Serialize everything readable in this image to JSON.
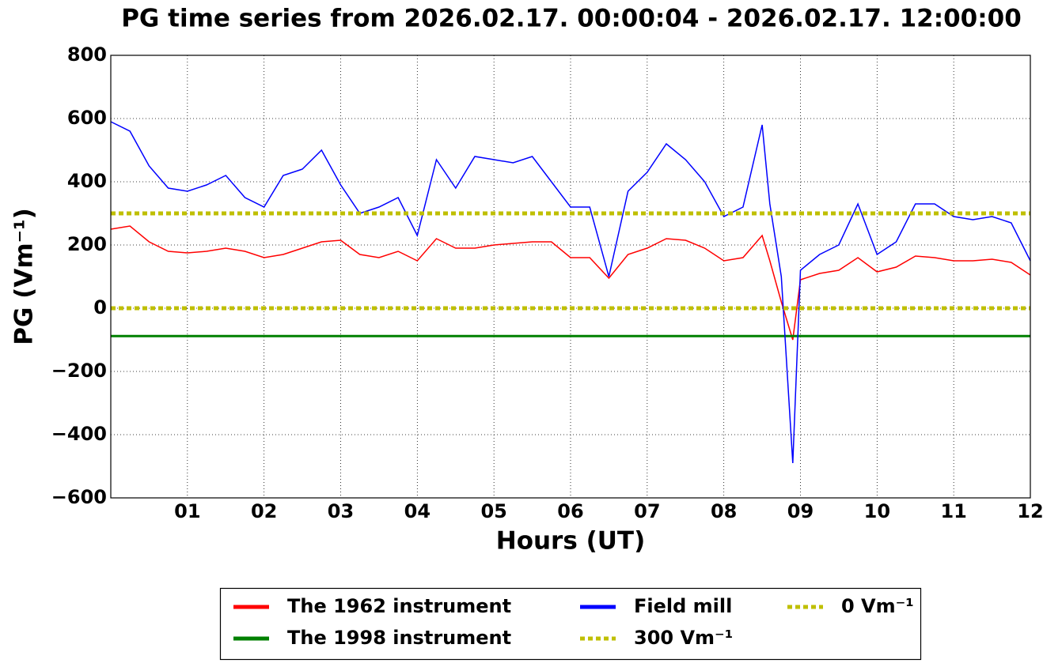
{
  "chart_data": {
    "type": "line",
    "title": "PG time series from 2026.02.17. 00:00:04 - 2026.02.17. 12:00:00",
    "x_label": "Hours (UT)",
    "y_label": "PG (Vm⁻¹)",
    "x": [
      0,
      0.25,
      0.5,
      0.75,
      1,
      1.25,
      1.5,
      1.75,
      2,
      2.25,
      2.5,
      2.75,
      3,
      3.25,
      3.5,
      3.75,
      4,
      4.25,
      4.5,
      4.75,
      5,
      5.25,
      5.5,
      5.75,
      6,
      6.25,
      6.5,
      6.75,
      7,
      7.25,
      7.5,
      7.75,
      8,
      8.25,
      8.5,
      8.6,
      8.75,
      8.9,
      9,
      9.25,
      9.5,
      9.75,
      10,
      10.25,
      10.5,
      10.75,
      11,
      11.25,
      11.5,
      11.75,
      12
    ],
    "series": [
      {
        "name": "The 1962 instrument",
        "color": "#ff0000",
        "values": [
          250,
          260,
          210,
          180,
          175,
          180,
          190,
          180,
          160,
          170,
          190,
          210,
          215,
          170,
          160,
          180,
          150,
          220,
          190,
          190,
          200,
          205,
          210,
          210,
          160,
          160,
          95,
          170,
          190,
          220,
          215,
          190,
          150,
          160,
          230,
          150,
          20,
          -100,
          90,
          110,
          120,
          160,
          115,
          130,
          165,
          160,
          150,
          150,
          155,
          145,
          105
        ]
      },
      {
        "name": "The 1998 instrument",
        "color": "#008000",
        "values": [
          -88,
          -88,
          -88,
          -88,
          -88,
          -88,
          -88,
          -88,
          -88,
          -88,
          -88,
          -88,
          -88,
          -88,
          -88,
          -88,
          -88,
          -88,
          -88,
          -88,
          -88,
          -88,
          -88,
          -88,
          -88,
          -88,
          -88,
          -88,
          -88,
          -88,
          -88,
          -88,
          -88,
          -88,
          -88,
          -88,
          -88,
          -88,
          -88,
          -88,
          -88,
          -88,
          -88,
          -88,
          -88,
          -88,
          -88,
          -88,
          -88,
          -88,
          -88
        ]
      },
      {
        "name": "Field mill",
        "color": "#0000ff",
        "values": [
          590,
          560,
          450,
          380,
          370,
          390,
          420,
          350,
          320,
          420,
          440,
          500,
          390,
          300,
          320,
          350,
          230,
          470,
          380,
          480,
          470,
          460,
          480,
          400,
          320,
          320,
          100,
          370,
          430,
          520,
          470,
          400,
          290,
          320,
          580,
          330,
          100,
          -490,
          120,
          170,
          200,
          330,
          170,
          210,
          330,
          330,
          290,
          280,
          290,
          270,
          150
        ]
      }
    ],
    "hlines": [
      {
        "name": "300 Vm⁻¹",
        "value": 300,
        "color": "#bfbf00"
      },
      {
        "name": "0 Vm⁻¹",
        "value": 0,
        "color": "#bfbf00"
      }
    ],
    "xlim": [
      0,
      12
    ],
    "xticks": [
      {
        "value": 1,
        "label": "01"
      },
      {
        "value": 2,
        "label": "02"
      },
      {
        "value": 3,
        "label": "03"
      },
      {
        "value": 4,
        "label": "04"
      },
      {
        "value": 5,
        "label": "05"
      },
      {
        "value": 6,
        "label": "06"
      },
      {
        "value": 7,
        "label": "07"
      },
      {
        "value": 8,
        "label": "08"
      },
      {
        "value": 9,
        "label": "09"
      },
      {
        "value": 10,
        "label": "10"
      },
      {
        "value": 11,
        "label": "11"
      },
      {
        "value": 12,
        "label": "12"
      }
    ],
    "ylim": [
      -600,
      800
    ],
    "yticks": [
      {
        "value": -600,
        "label": "−600"
      },
      {
        "value": -400,
        "label": "−400"
      },
      {
        "value": -200,
        "label": "−200"
      },
      0,
      200,
      400,
      600,
      800
    ],
    "grid": true,
    "legend": "bottom"
  }
}
